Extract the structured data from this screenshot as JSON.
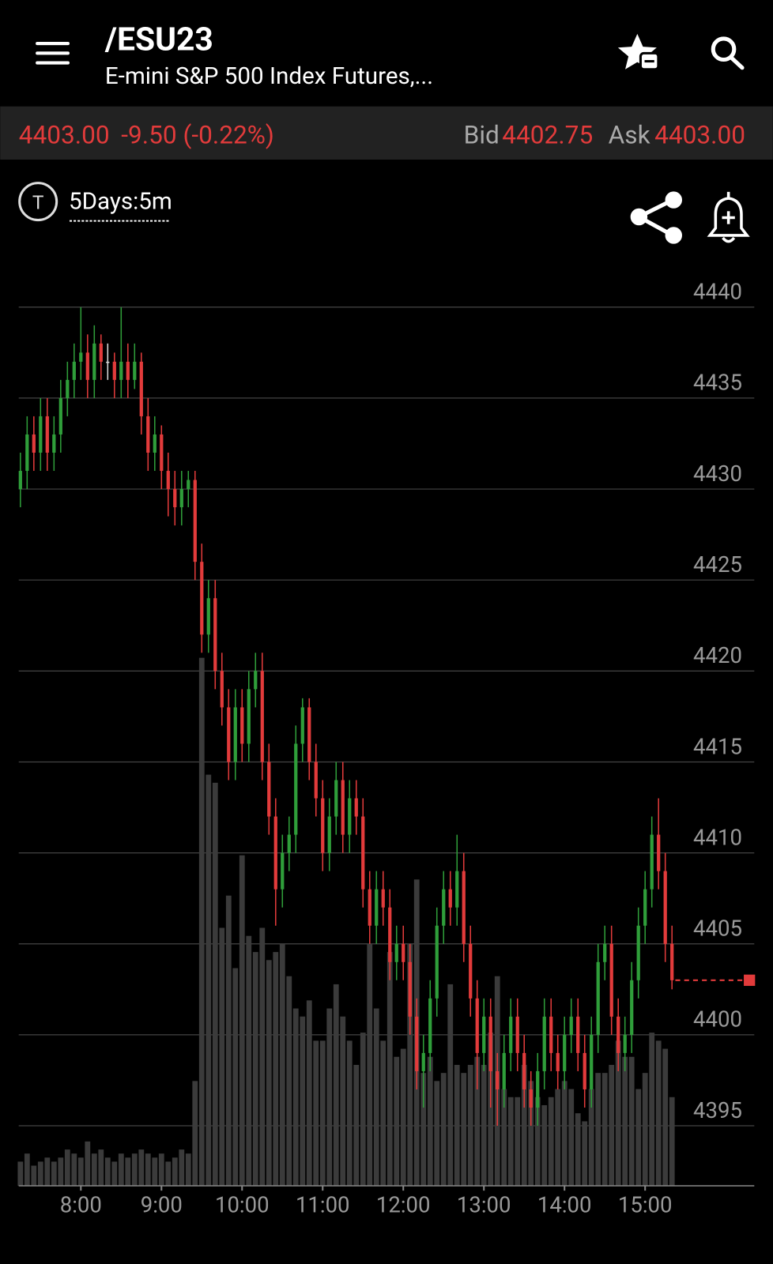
{
  "header": {
    "title": "/ESU23",
    "subtitle": "E-mini S&P 500 Index Futures,..."
  },
  "quote": {
    "last": "4403.00",
    "change": "-9.50 (-0.22%)",
    "bid_label": "Bid",
    "bid": "4402.75",
    "ask_label": "Ask",
    "ask": "4403.00"
  },
  "toolbar": {
    "icon_letter": "T",
    "period": "5Days:5m"
  },
  "chart_data": {
    "type": "candlestick",
    "up_color": "#2f9e3a",
    "down_color": "#e23b3b",
    "volume_color": "#3b3b3b",
    "grid": true,
    "open": [
      4430,
      4431,
      4433,
      4432,
      4434,
      4432,
      4433,
      4435,
      4436,
      4437,
      4437.5,
      4436,
      4438,
      4437,
      4437,
      4436,
      4437,
      4436,
      4437,
      4434,
      4432,
      4433,
      4431,
      4430,
      4429,
      4430,
      4430.5,
      4426,
      4422,
      4424,
      4420,
      4418,
      4415,
      4418,
      4416,
      4419,
      4420,
      4415,
      4412,
      4408,
      4410,
      4411,
      4416,
      4418,
      4415,
      4413,
      4410,
      4412,
      4414,
      4411,
      4413,
      4412,
      4408,
      4406,
      4408,
      4407,
      4404,
      4405,
      4404,
      4401,
      4398,
      4399,
      4402,
      4406,
      4408,
      4407,
      4409,
      4405,
      4402,
      4399,
      4401,
      4398,
      4397,
      4399,
      4401,
      4399,
      4397,
      4396,
      4398,
      4401,
      4399,
      4398,
      4400,
      4401,
      4399,
      4397,
      4400,
      4404,
      4405,
      4401,
      4399,
      4400,
      4403,
      4406,
      4408,
      4411,
      4409,
      4405
    ],
    "high": [
      4432,
      4434,
      4434,
      4435,
      4435,
      4434,
      4436,
      4437,
      4438,
      4440,
      4438.5,
      4439,
      4438.5,
      4438,
      4437.5,
      4440,
      4438,
      4438,
      4437.5,
      4435,
      4434,
      4433.5,
      4432,
      4431,
      4431,
      4431,
      4431,
      4427,
      4425,
      4425,
      4421,
      4419,
      4419,
      4419,
      4420,
      4421,
      4421,
      4416,
      4413,
      4411,
      4412,
      4417,
      4418.5,
      4418.5,
      4416,
      4414,
      4413,
      4415,
      4415,
      4414,
      4414,
      4413,
      4409,
      4409,
      4409,
      4408,
      4406,
      4406,
      4405,
      4402,
      4400,
      4403,
      4407,
      4409,
      4409,
      4411,
      4410,
      4406,
      4403,
      4402,
      4402,
      4399,
      4400,
      4402,
      4402,
      4400,
      4398,
      4399,
      4402,
      4402,
      4400,
      4401,
      4402,
      4402,
      4400,
      4401,
      4405,
      4406,
      4406,
      4402,
      4401,
      4404,
      4407,
      4409,
      4412,
      4413,
      4410,
      4406
    ],
    "low": [
      4429,
      4430,
      4431,
      4431,
      4431,
      4431,
      4432,
      4434,
      4435,
      4436,
      4435,
      4435,
      4436,
      4436,
      4435,
      4435,
      4435,
      4435.5,
      4433,
      4431,
      4431,
      4430,
      4428.5,
      4428,
      4428,
      4429,
      4425,
      4421,
      4421,
      4419,
      4417,
      4414,
      4414,
      4415,
      4415,
      4418,
      4414,
      4411,
      4406,
      4407,
      4409,
      4410,
      4415,
      4414,
      4412,
      4409,
      4409,
      4411,
      4410,
      4410,
      4411,
      4407,
      4405,
      4405,
      4406,
      4403,
      4403,
      4403,
      4400,
      4397,
      4396,
      4398,
      4401,
      4405,
      4406,
      4406,
      4404,
      4401,
      4397,
      4398,
      4396,
      4395,
      4396,
      4398,
      4398,
      4396,
      4395,
      4395,
      4397,
      4398,
      4397,
      4397,
      4399,
      4398,
      4396,
      4396,
      4399,
      4403,
      4400,
      4398,
      4398,
      4399,
      4402,
      4405,
      4407,
      4408,
      4404,
      4402.5
    ],
    "close": [
      4431,
      4433,
      4432,
      4434,
      4432,
      4433,
      4435,
      4436,
      4437,
      4437.5,
      4436,
      4438,
      4437,
      4437,
      4436,
      4437,
      4436,
      4437,
      4434,
      4432,
      4433,
      4431,
      4430,
      4429,
      4430,
      4430.5,
      4426,
      4422,
      4424,
      4420,
      4418,
      4415,
      4418,
      4416,
      4419,
      4420,
      4415,
      4412,
      4408,
      4410,
      4411,
      4416,
      4418,
      4415,
      4413,
      4410,
      4412,
      4414,
      4411,
      4413,
      4412,
      4408,
      4406,
      4408,
      4407,
      4404,
      4405,
      4404,
      4401,
      4398,
      4399,
      4402,
      4406,
      4408,
      4407,
      4409,
      4405,
      4402,
      4399,
      4401,
      4398,
      4397,
      4399,
      4401,
      4399,
      4397,
      4396,
      4398,
      4401,
      4399,
      4398,
      4400,
      4401,
      4399,
      4397,
      4400,
      4404,
      4405,
      4401,
      4399,
      4400,
      4403,
      4406,
      4408,
      4411,
      4409,
      4405,
      4403
    ],
    "volume": [
      30,
      40,
      25,
      30,
      35,
      30,
      35,
      45,
      40,
      35,
      55,
      40,
      45,
      35,
      30,
      40,
      35,
      40,
      45,
      40,
      35,
      40,
      30,
      35,
      45,
      40,
      130,
      655,
      510,
      500,
      320,
      360,
      270,
      410,
      310,
      290,
      320,
      280,
      290,
      300,
      260,
      220,
      210,
      230,
      180,
      180,
      220,
      250,
      210,
      180,
      150,
      190,
      300,
      220,
      180,
      290,
      160,
      170,
      300,
      380,
      140,
      160,
      130,
      140,
      250,
      150,
      140,
      150,
      160,
      150,
      190,
      260,
      120,
      110,
      110,
      150,
      130,
      110,
      100,
      110,
      120,
      130,
      120,
      90,
      80,
      120,
      140,
      140,
      150,
      180,
      160,
      160,
      120,
      140,
      190,
      180,
      170,
      110
    ],
    "last_price": 4403,
    "ylim": [
      4391.7,
      4440
    ],
    "yticks": [
      4440,
      4435,
      4430,
      4425,
      4420,
      4415,
      4410,
      4405,
      4400,
      4395
    ],
    "xlim": [
      -0.25,
      109.25
    ],
    "xticks": [
      {
        "value": 9,
        "label": "8:00"
      },
      {
        "value": 21,
        "label": "9:00"
      },
      {
        "value": 33,
        "label": "10:00"
      },
      {
        "value": 45,
        "label": "11:00"
      },
      {
        "value": 57,
        "label": "12:00"
      },
      {
        "value": 69,
        "label": "13:00"
      },
      {
        "value": 81,
        "label": "14:00"
      },
      {
        "value": 93,
        "label": "15:00"
      }
    ]
  }
}
